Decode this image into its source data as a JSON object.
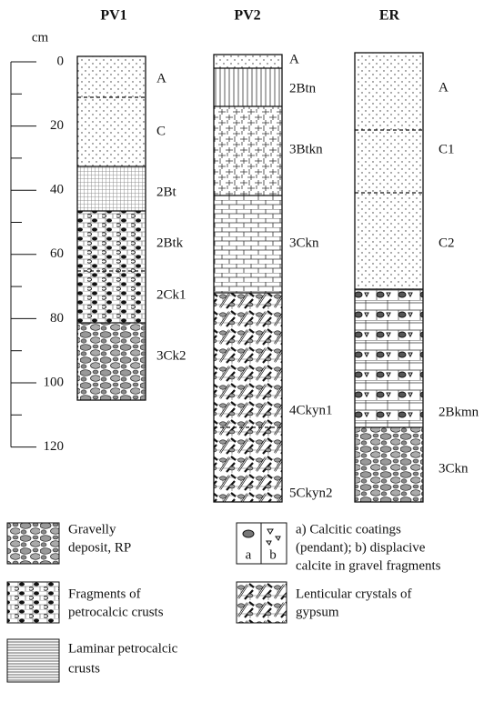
{
  "columns": [
    {
      "name": "PV1",
      "horizons": [
        "A",
        "C",
        "2Bt",
        "2Btk",
        "2Ck1",
        "3Ck2"
      ]
    },
    {
      "name": "PV2",
      "horizons": [
        "A",
        "2Btn",
        "3Btkn",
        "3Ckn",
        "4Ckyn1",
        "5Ckyn2"
      ]
    },
    {
      "name": "ER",
      "horizons": [
        "A",
        "C1",
        "C2",
        "2Bkmn",
        "3Ckn"
      ]
    }
  ],
  "depth_axis": {
    "unit": "cm",
    "labels": [
      "0",
      "20",
      "40",
      "60",
      "80",
      "100",
      "120"
    ]
  },
  "legend": [
    {
      "lines": [
        "Gravelly",
        "deposit, RP"
      ]
    },
    {
      "lines": [
        "Fragments of",
        "petrocalcic crusts"
      ]
    },
    {
      "lines": [
        "Laminar petrocalcic",
        "crusts"
      ]
    },
    {
      "lines": [
        "a) Calcitic coatings",
        "(pendant); b) displacive",
        "calcite in gravel fragments"
      ],
      "sublabels": [
        "a",
        "b"
      ]
    },
    {
      "lines": [
        "Lenticular crystals of",
        "gypsum"
      ]
    }
  ]
}
